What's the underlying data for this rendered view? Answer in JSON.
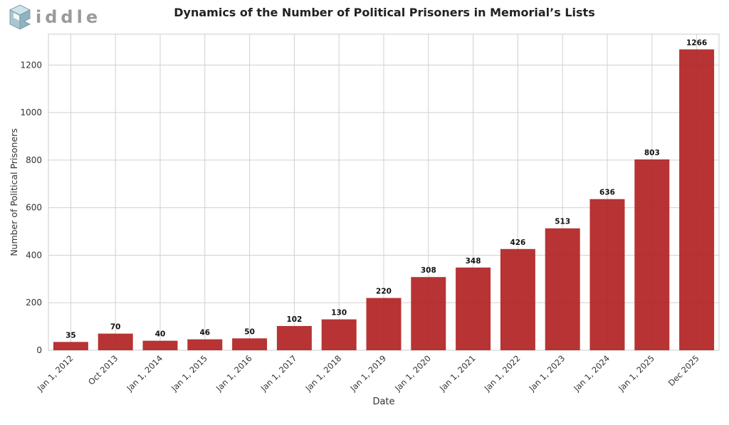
{
  "logo": {
    "text": "iddle",
    "icon": "riddle-logo-icon"
  },
  "chart_data": {
    "type": "bar",
    "title": "Dynamics of the Number of Political Prisoners in Memorial’s Lists",
    "xlabel": "Date",
    "ylabel": "Number of Political Prisoners",
    "categories": [
      "Jan 1, 2012",
      "Oct 2013",
      "Jan 1, 2014",
      "Jan 1, 2015",
      "Jan 1, 2016",
      "Jan 1, 2017",
      "Jan 1, 2018",
      "Jan 1, 2019",
      "Jan 1, 2020",
      "Jan 1, 2021",
      "Jan 1, 2022",
      "Jan 1, 2023",
      "Jan 1, 2024",
      "Jan 1, 2025",
      "Dec 2025"
    ],
    "values": [
      35,
      70,
      40,
      46,
      50,
      102,
      130,
      220,
      308,
      348,
      426,
      513,
      636,
      803,
      1266
    ],
    "ylim": [
      0,
      1330
    ],
    "yticks": [
      0,
      200,
      400,
      600,
      800,
      1000,
      1200
    ],
    "grid": true,
    "bar_color": "#b22222"
  }
}
